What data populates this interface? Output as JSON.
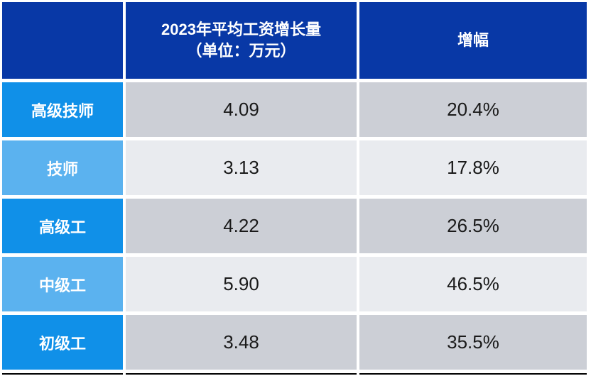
{
  "table": {
    "header": {
      "corner": "",
      "salary_col": "2023年平均工资增长量\n（单位：万元）",
      "growth_col": "增幅"
    },
    "rows": [
      {
        "label": "高级技师",
        "value": "4.09",
        "pct": "20.4%"
      },
      {
        "label": "技师",
        "value": "3.13",
        "pct": "17.8%"
      },
      {
        "label": "高级工",
        "value": "4.22",
        "pct": "26.5%"
      },
      {
        "label": "中级工",
        "value": "5.90",
        "pct": "46.5%"
      },
      {
        "label": "初级工",
        "value": "3.48",
        "pct": "35.5%"
      }
    ]
  },
  "colors": {
    "header_blue": "#0838A6",
    "row_header_blue_odd": "#1090E8",
    "row_header_blue_even": "#5BB2EF",
    "data_cell_gray_odd": "#CCCFD6",
    "data_cell_gray_even": "#E9EBEF",
    "header_text": "#FFFFFF",
    "data_text": "#1A1A1A",
    "bottom_border": "#000000",
    "background": "#FFFFFF"
  },
  "chart_data": {
    "type": "table",
    "columns": [
      "",
      "2023年平均工资增长量（单位：万元）",
      "增幅"
    ],
    "rows": [
      [
        "高级技师",
        4.09,
        "20.4%"
      ],
      [
        "技师",
        3.13,
        "17.8%"
      ],
      [
        "高级工",
        4.22,
        "26.5%"
      ],
      [
        "中级工",
        5.9,
        "46.5%"
      ],
      [
        "初级工",
        3.48,
        "35.5%"
      ]
    ],
    "notes": "Static slide-style table; header row dark blue, alternating azure row headers and gray value cells; black rule along bottom edge"
  }
}
